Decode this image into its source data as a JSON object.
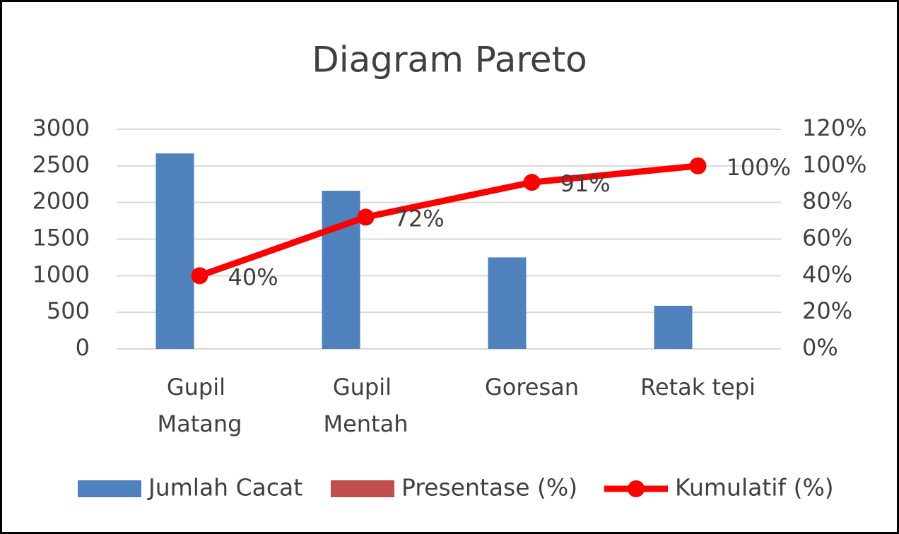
{
  "chart_data": {
    "type": "bar",
    "title": "Diagram Pareto",
    "categories": [
      "Gupil Matang",
      "Gupil Mentah",
      "Goresan",
      "Retak tepi"
    ],
    "series": [
      {
        "name": "Jumlah Cacat",
        "color": "#4f81bd",
        "type": "bar",
        "values": [
          2670,
          2160,
          1250,
          590
        ]
      },
      {
        "name": "Presentase (%)",
        "color": "#c0504d",
        "type": "bar",
        "values": [
          null,
          null,
          null,
          null
        ]
      },
      {
        "name": "Kumulatif (%)",
        "color": "#ff0000",
        "type": "line",
        "axis": "y2",
        "values": [
          40,
          72,
          91,
          100
        ],
        "value_labels": [
          "40%",
          "72%",
          "91%",
          "100%"
        ]
      }
    ],
    "ylim": [
      0,
      3000
    ],
    "yticks": [
      0,
      500,
      1000,
      1500,
      2000,
      2500,
      3000
    ],
    "y2lim": [
      0,
      120
    ],
    "y2ticks": [
      {
        "value": 0,
        "label": "0%"
      },
      {
        "value": 20,
        "label": "20%"
      },
      {
        "value": 40,
        "label": "40%"
      },
      {
        "value": 60,
        "label": "60%"
      },
      {
        "value": 80,
        "label": "80%"
      },
      {
        "value": 100,
        "label": "100%"
      },
      {
        "value": 120,
        "label": "120%"
      }
    ],
    "grid": true,
    "legend": "bottom"
  }
}
